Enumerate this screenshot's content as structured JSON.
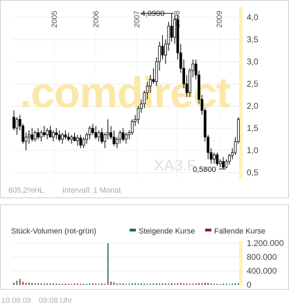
{
  "price_chart": {
    "watermark": ".comdirect",
    "series_code": "XA3.F",
    "bottom_left_stat": "605,2%HL",
    "interval_label": "Intervall: 1 Monat",
    "colors": {
      "up": "#ffffff",
      "down": "#000000",
      "wick": "#000000",
      "highlight_band": "#fff2b3"
    }
  },
  "volume_chart": {
    "title": "Stück-Volumen (rot-grün)",
    "legend": [
      {
        "name": "Steigende Kurse",
        "color": "#1f6f4a"
      },
      {
        "name": "Fallende Kurse",
        "color": "#9b1b1b"
      }
    ]
  },
  "footer": {
    "date": "10.08.09",
    "time": "09:08 Uhr"
  },
  "chart_data": [
    {
      "type": "candlestick",
      "x_labels": [
        "2005",
        "2006",
        "2007",
        "2008",
        "2009"
      ],
      "y_ticks": [
        "0,5",
        "1,0",
        "1,5",
        "2,0",
        "2,5",
        "3,0",
        "3,5",
        "4,0"
      ],
      "y_tick_values": [
        0.5,
        1.0,
        1.5,
        2.0,
        2.5,
        3.0,
        3.5,
        4.0
      ],
      "ylim": [
        0.35,
        4.25
      ],
      "annotations": [
        {
          "label": "4,0900",
          "value": 4.09
        },
        {
          "label": "0,5800",
          "value": 0.58
        }
      ],
      "candles": [
        [
          1.75,
          1.9,
          1.45,
          1.5
        ],
        [
          1.5,
          1.75,
          1.35,
          1.7
        ],
        [
          1.7,
          1.8,
          1.45,
          1.55
        ],
        [
          1.55,
          1.6,
          1.15,
          1.2
        ],
        [
          1.2,
          1.4,
          1.0,
          1.3
        ],
        [
          1.3,
          1.45,
          1.15,
          1.35
        ],
        [
          1.35,
          1.5,
          1.2,
          1.25
        ],
        [
          1.25,
          1.45,
          1.2,
          1.4
        ],
        [
          1.4,
          1.5,
          1.25,
          1.3
        ],
        [
          1.3,
          1.45,
          1.2,
          1.4
        ],
        [
          1.4,
          1.55,
          1.3,
          1.35
        ],
        [
          1.35,
          1.5,
          1.25,
          1.45
        ],
        [
          1.45,
          1.55,
          1.3,
          1.3
        ],
        [
          1.3,
          1.45,
          1.2,
          1.4
        ],
        [
          1.4,
          1.5,
          1.25,
          1.35
        ],
        [
          1.35,
          1.45,
          1.2,
          1.25
        ],
        [
          1.25,
          1.4,
          1.15,
          1.35
        ],
        [
          1.35,
          1.45,
          1.25,
          1.3
        ],
        [
          1.3,
          1.4,
          1.2,
          1.25
        ],
        [
          1.25,
          1.35,
          1.15,
          1.3
        ],
        [
          1.3,
          1.4,
          1.2,
          1.22
        ],
        [
          1.22,
          1.35,
          1.1,
          1.28
        ],
        [
          1.28,
          1.35,
          1.05,
          1.12
        ],
        [
          1.12,
          1.3,
          1.05,
          1.25
        ],
        [
          1.25,
          1.4,
          1.15,
          1.35
        ],
        [
          1.35,
          1.55,
          1.25,
          1.5
        ],
        [
          1.5,
          1.6,
          1.35,
          1.4
        ],
        [
          1.4,
          1.55,
          1.25,
          1.3
        ],
        [
          1.3,
          1.45,
          1.2,
          1.4
        ],
        [
          1.4,
          1.5,
          1.15,
          1.2
        ],
        [
          1.2,
          1.4,
          1.05,
          1.35
        ],
        [
          1.35,
          1.7,
          1.25,
          1.4
        ],
        [
          1.4,
          1.55,
          1.25,
          1.3
        ],
        [
          1.3,
          1.45,
          1.1,
          1.15
        ],
        [
          1.15,
          1.3,
          1.05,
          1.25
        ],
        [
          1.25,
          1.45,
          1.15,
          1.4
        ],
        [
          1.4,
          1.5,
          1.2,
          1.25
        ],
        [
          1.25,
          1.4,
          1.15,
          1.35
        ],
        [
          1.35,
          1.45,
          1.25,
          1.4
        ],
        [
          1.4,
          1.7,
          1.35,
          1.65
        ],
        [
          1.65,
          1.8,
          1.55,
          1.7
        ],
        [
          1.7,
          2.0,
          1.6,
          1.95
        ],
        [
          1.95,
          2.15,
          1.85,
          2.05
        ],
        [
          2.05,
          2.35,
          1.95,
          2.3
        ],
        [
          2.3,
          2.55,
          2.15,
          2.45
        ],
        [
          2.45,
          2.7,
          2.3,
          2.6
        ],
        [
          2.6,
          2.85,
          2.5,
          2.55
        ],
        [
          2.55,
          3.1,
          2.45,
          3.0
        ],
        [
          3.0,
          3.45,
          2.8,
          3.35
        ],
        [
          3.35,
          3.6,
          3.05,
          3.15
        ],
        [
          3.15,
          3.5,
          2.95,
          3.4
        ],
        [
          3.4,
          3.9,
          3.25,
          3.8
        ],
        [
          3.8,
          4.09,
          3.45,
          3.55
        ],
        [
          3.55,
          4.05,
          3.4,
          3.95
        ],
        [
          3.95,
          4.05,
          3.05,
          3.2
        ],
        [
          3.2,
          3.4,
          2.75,
          2.85
        ],
        [
          2.85,
          3.05,
          2.4,
          2.5
        ],
        [
          2.5,
          2.7,
          2.2,
          2.3
        ],
        [
          2.3,
          2.85,
          2.2,
          2.8
        ],
        [
          2.8,
          3.05,
          2.65,
          2.95
        ],
        [
          2.95,
          3.05,
          2.6,
          2.7
        ],
        [
          2.7,
          2.8,
          2.05,
          2.15
        ],
        [
          2.15,
          2.25,
          1.8,
          1.9
        ],
        [
          1.9,
          1.95,
          1.2,
          1.3
        ],
        [
          1.3,
          1.35,
          0.8,
          0.95
        ],
        [
          0.95,
          1.05,
          0.7,
          0.8
        ],
        [
          0.8,
          0.95,
          0.7,
          0.9
        ],
        [
          0.9,
          0.95,
          0.65,
          0.7
        ],
        [
          0.7,
          0.8,
          0.62,
          0.75
        ],
        [
          0.75,
          0.85,
          0.58,
          0.62
        ],
        [
          0.62,
          0.8,
          0.6,
          0.75
        ],
        [
          0.75,
          0.92,
          0.68,
          0.88
        ],
        [
          0.88,
          1.05,
          0.8,
          0.95
        ],
        [
          0.95,
          1.3,
          0.9,
          1.2
        ],
        [
          1.2,
          1.75,
          1.15,
          1.7
        ]
      ],
      "candle_order": [
        "open",
        "high",
        "low",
        "close"
      ]
    },
    {
      "type": "bar",
      "title": "Stück-Volumen (rot-grün)",
      "y_ticks": [
        "1.200.000",
        "800.000",
        "400.000",
        "0"
      ],
      "y_tick_values": [
        1200000,
        800000,
        400000,
        0
      ],
      "ylim": [
        0,
        1300000
      ],
      "series": [
        {
          "name": "Steigende Kurse",
          "values": [
            0,
            120000,
            0,
            0,
            0,
            70000,
            0,
            50000,
            0,
            40000,
            0,
            45000,
            0,
            40000,
            0,
            0,
            30000,
            0,
            0,
            25000,
            0,
            40000,
            0,
            35000,
            30000,
            45000,
            0,
            0,
            30000,
            0,
            30000,
            1200000,
            0,
            0,
            40000,
            45000,
            0,
            30000,
            35000,
            45000,
            50000,
            40000,
            45000,
            40000,
            30000,
            35000,
            0,
            45000,
            40000,
            0,
            40000,
            45000,
            0,
            40000,
            0,
            0,
            0,
            0,
            30000,
            35000,
            0,
            0,
            0,
            0,
            0,
            0,
            30000,
            0,
            25000,
            0,
            30000,
            25000,
            35000,
            45000,
            50000
          ]
        },
        {
          "name": "Fallende Kurse",
          "values": [
            60000,
            0,
            170000,
            90000,
            60000,
            0,
            50000,
            0,
            45000,
            0,
            35000,
            0,
            40000,
            0,
            35000,
            30000,
            0,
            40000,
            30000,
            0,
            35000,
            0,
            30000,
            0,
            0,
            0,
            40000,
            35000,
            0,
            40000,
            0,
            0,
            90000,
            70000,
            0,
            0,
            45000,
            0,
            0,
            0,
            0,
            0,
            0,
            0,
            0,
            0,
            40000,
            0,
            0,
            45000,
            0,
            0,
            50000,
            0,
            45000,
            55000,
            40000,
            35000,
            0,
            0,
            40000,
            50000,
            45000,
            60000,
            55000,
            40000,
            0,
            30000,
            0,
            35000,
            0,
            0,
            0,
            0,
            0
          ]
        }
      ]
    }
  ]
}
